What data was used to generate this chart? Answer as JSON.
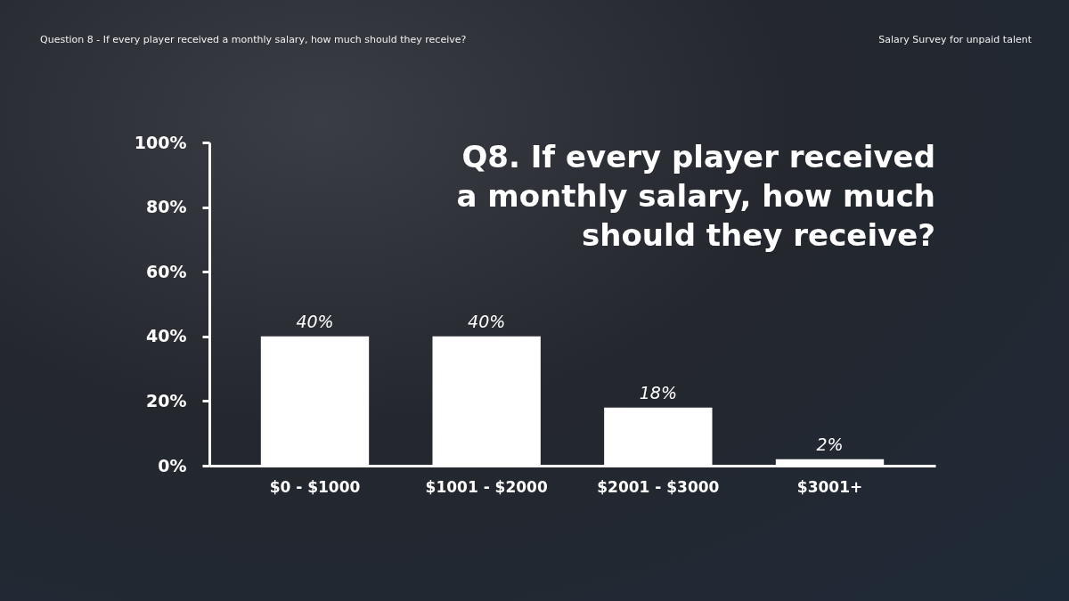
{
  "chart_data": {
    "type": "bar",
    "title": "Q8. If every player received\na monthly salary, how much\nshould they receive?",
    "annotations": [
      "Question 8 - If every player received a monthly salary, how much should they receive?",
      "Salary Survey for unpaid talent"
    ],
    "categories": [
      "$0 - $1000",
      "$1001 - $2000",
      "$2001 - $3000",
      "$3001+"
    ],
    "values": [
      40,
      40,
      18,
      2
    ],
    "color": "#ffffff",
    "data_labels": true,
    "value_labels": [
      "40%",
      "40%",
      "18%",
      "2%"
    ],
    "ylim": [
      0,
      100
    ],
    "yticks": [
      {
        "value": 0,
        "label": "0%"
      },
      {
        "value": 20,
        "label": "20%"
      },
      {
        "value": 40,
        "label": "40%"
      },
      {
        "value": 60,
        "label": "60%"
      },
      {
        "value": 80,
        "label": "80%"
      },
      {
        "value": 100,
        "label": "100%"
      }
    ],
    "grid": false
  }
}
